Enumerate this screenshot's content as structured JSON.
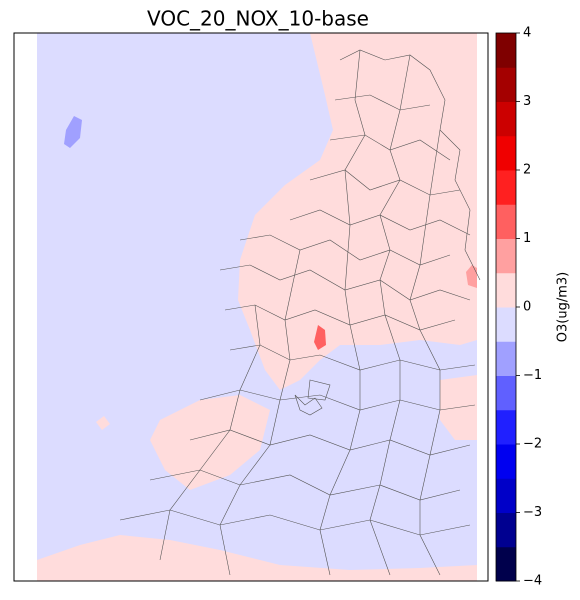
{
  "title": "VOC_20_NOX_10-base",
  "colorbar": {
    "label": "O3(ug/m3)",
    "levels": [
      -4,
      -3.5,
      -3,
      -2.5,
      -2,
      -1.5,
      -1,
      -0.5,
      0,
      0.5,
      1,
      1.5,
      2,
      2.5,
      3,
      3.5,
      4
    ],
    "colors": [
      "#00004c",
      "#000090",
      "#0000c8",
      "#0000f0",
      "#2020ff",
      "#6060ff",
      "#a0a0ff",
      "#dcdcff",
      "#ffdcdc",
      "#ffa0a0",
      "#ff6060",
      "#ff2020",
      "#f00000",
      "#cc0000",
      "#a40000",
      "#7f0000"
    ],
    "ticks": [
      {
        "value": -4,
        "label": "−4"
      },
      {
        "value": -3,
        "label": "−3"
      },
      {
        "value": -2,
        "label": "−2"
      },
      {
        "value": -1,
        "label": "−1"
      },
      0,
      1,
      2,
      3,
      4
    ]
  }
}
